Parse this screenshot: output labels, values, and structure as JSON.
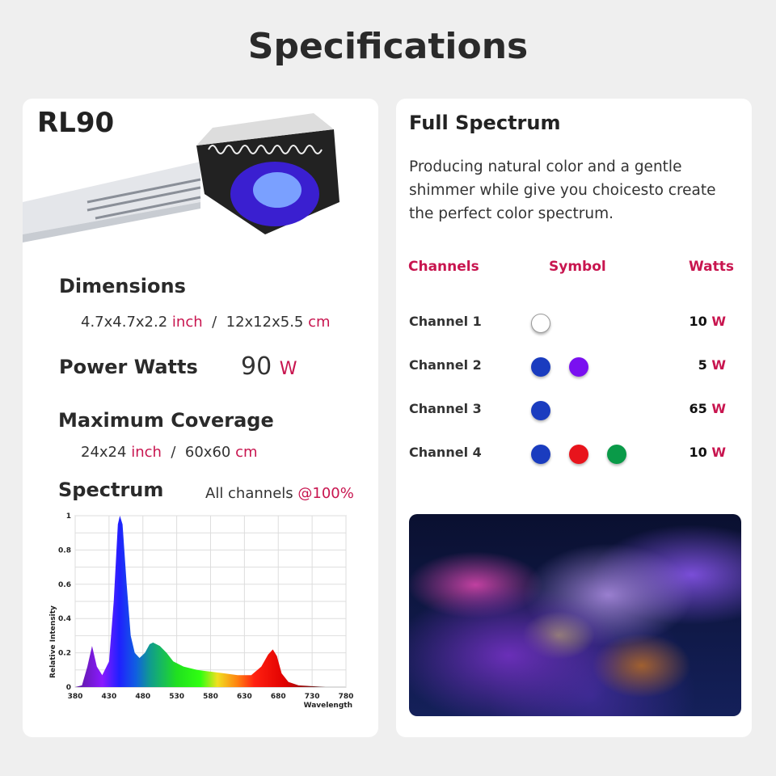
{
  "title": "Specifications",
  "left": {
    "model": "RL90",
    "dimensions": {
      "label": "Dimensions",
      "inch_value": "4.7x4.7x2.2",
      "inch_unit": "inch",
      "sep": "/",
      "cm_value": "12x12x5.5",
      "cm_unit": "cm"
    },
    "power": {
      "label": "Power Watts",
      "value": "90",
      "unit": "W"
    },
    "coverage": {
      "label": "Maximum Coverage",
      "inch_value": "24x24",
      "inch_unit": "inch",
      "sep": "/",
      "cm_value": "60x60",
      "cm_unit": "cm"
    },
    "spectrum": {
      "label": "Spectrum",
      "note": "All channels",
      "note_accent": "@100%"
    }
  },
  "right": {
    "title": "Full Spectrum",
    "description": "Producing natural color and a gentle shimmer while give you choicesto create the perfect color spectrum.",
    "headers": {
      "channels": "Channels",
      "symbol": "Symbol",
      "watts": "Watts"
    },
    "channels": [
      {
        "name": "Channel 1",
        "watts": "10",
        "unit": "W",
        "colors": [
          "#ffffff"
        ]
      },
      {
        "name": "Channel 2",
        "watts": "5",
        "unit": "W",
        "colors": [
          "#1a3cbf",
          "#7a10f0"
        ]
      },
      {
        "name": "Channel 3",
        "watts": "65",
        "unit": "W",
        "colors": [
          "#1a3cbf"
        ]
      },
      {
        "name": "Channel 4",
        "watts": "10",
        "unit": "W",
        "colors": [
          "#1a3cbf",
          "#e8141c",
          "#0a9a48"
        ]
      }
    ]
  },
  "colors": {
    "accent": "#c8154f"
  },
  "chart_data": {
    "type": "area",
    "xlabel": "Wavelength",
    "ylabel": "Relative Intensity",
    "xlim": [
      380,
      780
    ],
    "ylim": [
      0,
      1
    ],
    "xticks": [
      "380",
      "430",
      "480",
      "530",
      "580",
      "630",
      "680",
      "730",
      "780"
    ],
    "yticks": [
      "0",
      "0.2",
      "0.4",
      "0.6",
      "0.8",
      "1"
    ],
    "grid": true,
    "points": [
      [
        380,
        0
      ],
      [
        390,
        0.01
      ],
      [
        398,
        0.12
      ],
      [
        405,
        0.24
      ],
      [
        412,
        0.12
      ],
      [
        420,
        0.07
      ],
      [
        430,
        0.15
      ],
      [
        437,
        0.5
      ],
      [
        443,
        0.95
      ],
      [
        446,
        1.0
      ],
      [
        450,
        0.95
      ],
      [
        456,
        0.6
      ],
      [
        462,
        0.3
      ],
      [
        468,
        0.2
      ],
      [
        475,
        0.17
      ],
      [
        483,
        0.2
      ],
      [
        490,
        0.25
      ],
      [
        495,
        0.26
      ],
      [
        505,
        0.24
      ],
      [
        515,
        0.2
      ],
      [
        525,
        0.15
      ],
      [
        540,
        0.12
      ],
      [
        560,
        0.1
      ],
      [
        580,
        0.09
      ],
      [
        600,
        0.08
      ],
      [
        620,
        0.07
      ],
      [
        640,
        0.07
      ],
      [
        655,
        0.12
      ],
      [
        665,
        0.19
      ],
      [
        672,
        0.22
      ],
      [
        678,
        0.18
      ],
      [
        685,
        0.08
      ],
      [
        695,
        0.03
      ],
      [
        710,
        0.01
      ],
      [
        730,
        0.005
      ],
      [
        750,
        0
      ],
      [
        780,
        0
      ]
    ]
  }
}
